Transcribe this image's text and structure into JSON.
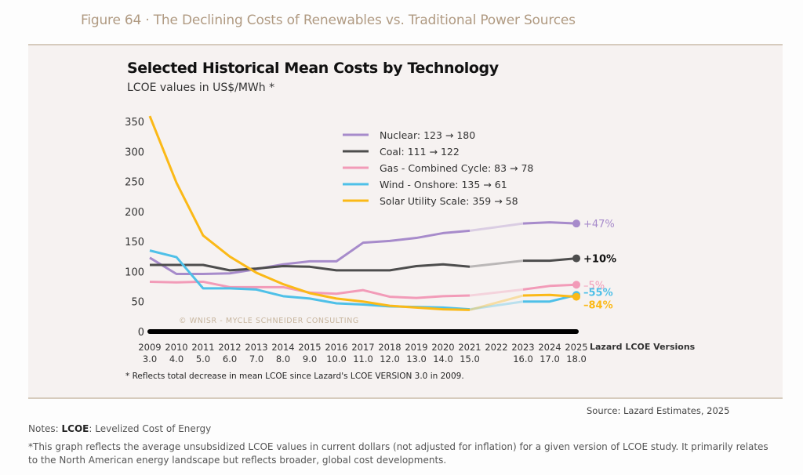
{
  "figure_title": "Figure 64 · The Declining Costs of Renewables vs. Traditional Power Sources",
  "footnote": "* Reflects total decrease in mean LCOE since Lazard's  LCOE VERSION 3.0 in 2009.",
  "source": "Source: Lazard Estimates, 2025",
  "notes": {
    "prefix": "Notes: ",
    "term": "LCOE",
    "definition": ": Levelized Cost of Energy",
    "description": "*This graph reflects the average unsubsidized LCOE values in current dollars (not adjusted for inflation) for a given version of LCOE study. It primarily relates to the North American energy landscape but reflects broader, global cost developments."
  },
  "chart_data": {
    "type": "line",
    "title": "Selected Historical Mean Costs by Technology",
    "subtitle": "LCOE values in US$/MWh *",
    "xlabel": "Lazard LCOE Versions",
    "ylabel": "",
    "ylim": [
      0,
      350
    ],
    "yticks": [
      0,
      50,
      100,
      150,
      200,
      250,
      300,
      350
    ],
    "x": [
      2009,
      2010,
      2011,
      2012,
      2013,
      2014,
      2015,
      2016,
      2017,
      2018,
      2019,
      2020,
      2021,
      2022,
      2023,
      2024,
      2025
    ],
    "versions": [
      "3.0",
      "4.0",
      "5.0",
      "6.0",
      "7.0",
      "8.0",
      "9.0",
      "10.0",
      "11.0",
      "12.0",
      "13.0",
      "14.0",
      "15.0",
      "",
      "16.0",
      "17.0",
      "18.0"
    ],
    "gap_note": "2022 has no LCOE version; segment 2021-2023 drawn faded",
    "watermark": "© WNISR - Mycle Schneider Consulting",
    "legend_position": "top-center",
    "grid": false,
    "series": [
      {
        "name": "Nuclear",
        "legend": "Nuclear: 123 → 180",
        "color": "#a78bcb",
        "change": "+47%",
        "values": [
          123,
          96,
          96,
          97,
          104,
          112,
          117,
          117,
          148,
          151,
          156,
          164,
          168,
          null,
          180,
          182,
          180
        ]
      },
      {
        "name": "Coal",
        "legend": "Coal: 111 → 122",
        "color": "#4d4d4d",
        "change": "+10%",
        "values": [
          111,
          111,
          111,
          102,
          105,
          109,
          108,
          102,
          102,
          102,
          109,
          112,
          108,
          null,
          118,
          118,
          122
        ]
      },
      {
        "name": "Gas - Combined Cycle",
        "legend": "Gas - Combined Cycle: 83 → 78",
        "color": "#f29bb8",
        "change": "–5%",
        "values": [
          83,
          82,
          83,
          74,
          74,
          74,
          65,
          63,
          69,
          58,
          56,
          59,
          60,
          null,
          70,
          76,
          78
        ]
      },
      {
        "name": "Wind - Onshore",
        "legend": "Wind - Onshore: 135 → 61",
        "color": "#4ec0e8",
        "change": "–55%",
        "values": [
          135,
          124,
          72,
          72,
          70,
          59,
          55,
          47,
          45,
          42,
          41,
          40,
          37,
          null,
          50,
          50,
          61
        ]
      },
      {
        "name": "Solar Utility Scale",
        "legend": "Solar Utility Scale: 359 → 58",
        "color": "#fbb917",
        "change": "–84%",
        "values": [
          359,
          248,
          160,
          125,
          98,
          79,
          64,
          55,
          50,
          43,
          40,
          37,
          36,
          null,
          60,
          61,
          58
        ]
      }
    ]
  }
}
